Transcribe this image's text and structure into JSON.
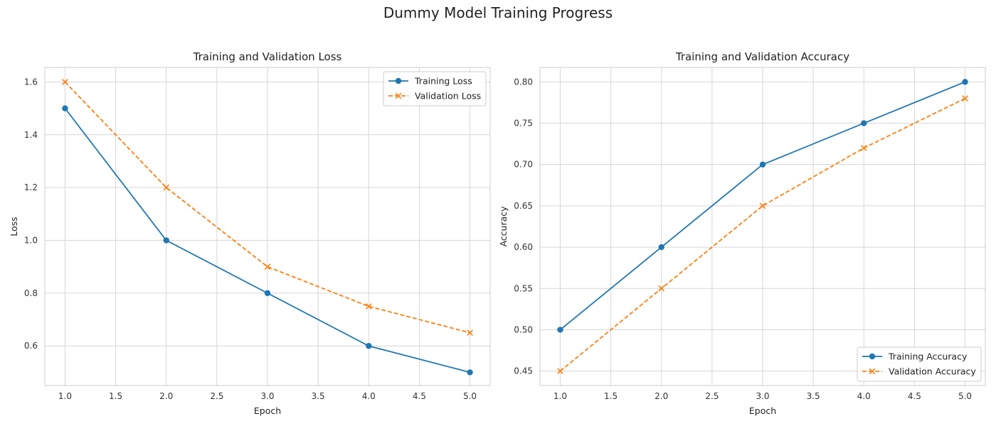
{
  "figure": {
    "title": "Dummy Model Training Progress"
  },
  "chart_data": [
    {
      "type": "line",
      "title": "Training and Validation Loss",
      "xlabel": "Epoch",
      "ylabel": "Loss",
      "x": [
        1,
        2,
        3,
        4,
        5
      ],
      "xlim": [
        0.8,
        5.2
      ],
      "ylim": [
        0.45,
        1.655
      ],
      "xticks": [
        "1.0",
        "1.5",
        "2.0",
        "2.5",
        "3.0",
        "3.5",
        "4.0",
        "4.5",
        "5.0"
      ],
      "yticks": [
        "0.6",
        "0.8",
        "1.0",
        "1.2",
        "1.4",
        "1.6"
      ],
      "grid": true,
      "legend_position": "top-right",
      "series": [
        {
          "name": "Training Loss",
          "values": [
            1.5,
            1.0,
            0.8,
            0.6,
            0.5
          ],
          "color": "#1f77b4",
          "linestyle": "solid",
          "marker": "circle"
        },
        {
          "name": "Validation Loss",
          "values": [
            1.6,
            1.2,
            0.9,
            0.75,
            0.65
          ],
          "color": "#ff7f0e",
          "linestyle": "dashed",
          "marker": "x"
        }
      ]
    },
    {
      "type": "line",
      "title": "Training and Validation Accuracy",
      "xlabel": "Epoch",
      "ylabel": "Accuracy",
      "x": [
        1,
        2,
        3,
        4,
        5
      ],
      "xlim": [
        0.8,
        5.2
      ],
      "ylim": [
        0.4325,
        0.8175
      ],
      "xticks": [
        "1.0",
        "1.5",
        "2.0",
        "2.5",
        "3.0",
        "3.5",
        "4.0",
        "4.5",
        "5.0"
      ],
      "yticks": [
        "0.45",
        "0.50",
        "0.55",
        "0.60",
        "0.65",
        "0.70",
        "0.75",
        "0.80"
      ],
      "grid": true,
      "legend_position": "bottom-right",
      "series": [
        {
          "name": "Training Accuracy",
          "values": [
            0.5,
            0.6,
            0.7,
            0.75,
            0.8
          ],
          "color": "#1f77b4",
          "linestyle": "solid",
          "marker": "circle"
        },
        {
          "name": "Validation Accuracy",
          "values": [
            0.45,
            0.55,
            0.65,
            0.72,
            0.78
          ],
          "color": "#ff7f0e",
          "linestyle": "dashed",
          "marker": "x"
        }
      ]
    }
  ]
}
